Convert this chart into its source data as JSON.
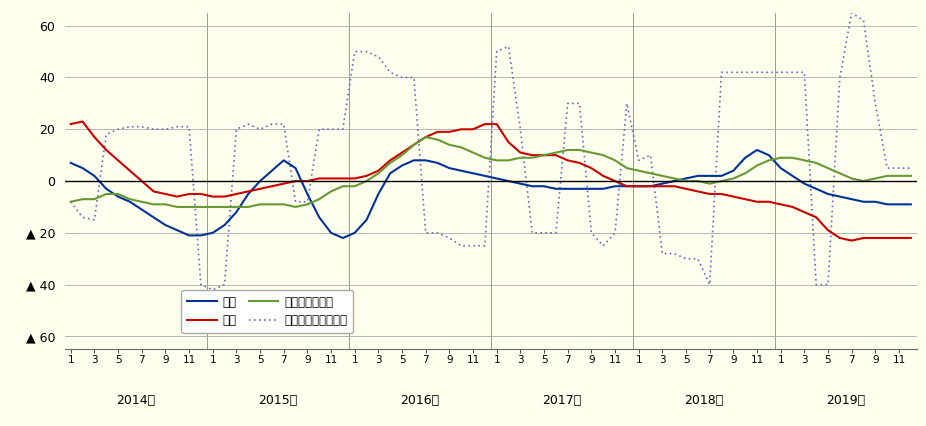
{
  "background_color": "#ffffee",
  "years": [
    "2014年",
    "2015年",
    "2016年",
    "2017年",
    "2018年",
    "2019年"
  ],
  "ylim": [
    -65,
    65
  ],
  "yticks": [
    60,
    40,
    20,
    0,
    -20,
    -40,
    -60
  ],
  "line_colors": {
    "持家": "#003399",
    "貸家": "#cc0000",
    "分譲一戸建": "#669933",
    "分譲マンション": "#6666cc"
  },
  "持家": [
    7,
    5,
    2,
    -3,
    -6,
    -8,
    -11,
    -14,
    -17,
    -19,
    -21,
    -21,
    -20,
    -17,
    -12,
    -5,
    0,
    4,
    8,
    5,
    -5,
    -14,
    -20,
    -22,
    -20,
    -15,
    -5,
    3,
    6,
    8,
    8,
    7,
    5,
    4,
    3,
    2,
    1,
    0,
    -1,
    -2,
    -2,
    -3,
    -3,
    -3,
    -3,
    -3,
    -2,
    -2,
    -2,
    -2,
    -1,
    0,
    1,
    2,
    2,
    2,
    4,
    9,
    12,
    10,
    5,
    2,
    -1,
    -3,
    -5,
    -6,
    -7,
    -8,
    -8,
    -9,
    -9,
    -9
  ],
  "貸家": [
    22,
    23,
    17,
    12,
    8,
    4,
    0,
    -4,
    -5,
    -6,
    -5,
    -5,
    -6,
    -6,
    -5,
    -4,
    -3,
    -2,
    -1,
    0,
    0,
    1,
    1,
    1,
    1,
    2,
    4,
    8,
    11,
    14,
    17,
    19,
    19,
    20,
    20,
    22,
    22,
    15,
    11,
    10,
    10,
    10,
    8,
    7,
    5,
    2,
    0,
    -2,
    -2,
    -2,
    -2,
    -2,
    -3,
    -4,
    -5,
    -5,
    -6,
    -7,
    -8,
    -8,
    -9,
    -10,
    -12,
    -14,
    -19,
    -22,
    -23,
    -22,
    -22,
    -22,
    -22,
    -22
  ],
  "分譲一戸建": [
    -8,
    -7,
    -7,
    -5,
    -5,
    -7,
    -8,
    -9,
    -9,
    -10,
    -10,
    -10,
    -10,
    -10,
    -10,
    -10,
    -9,
    -9,
    -9,
    -10,
    -9,
    -7,
    -4,
    -2,
    -2,
    0,
    3,
    7,
    10,
    14,
    17,
    16,
    14,
    13,
    11,
    9,
    8,
    8,
    9,
    9,
    10,
    11,
    12,
    12,
    11,
    10,
    8,
    5,
    4,
    3,
    2,
    1,
    0,
    0,
    -1,
    0,
    1,
    3,
    6,
    8,
    9,
    9,
    8,
    7,
    5,
    3,
    1,
    0,
    1,
    2,
    2,
    2
  ],
  "分譲マンション": [
    -8,
    -14,
    -15,
    18,
    20,
    21,
    21,
    20,
    20,
    21,
    21,
    -40,
    -42,
    -40,
    20,
    22,
    20,
    22,
    22,
    -8,
    -8,
    20,
    20,
    20,
    50,
    50,
    48,
    42,
    40,
    40,
    -20,
    -20,
    -22,
    -25,
    -25,
    -25,
    50,
    52,
    20,
    -20,
    -20,
    -20,
    30,
    30,
    -20,
    -25,
    -20,
    30,
    8,
    10,
    -28,
    -28,
    -30,
    -30,
    -40,
    42,
    42,
    42,
    42,
    42,
    42,
    42,
    42,
    -40,
    -40,
    40,
    65,
    62,
    30,
    5,
    5,
    5
  ]
}
